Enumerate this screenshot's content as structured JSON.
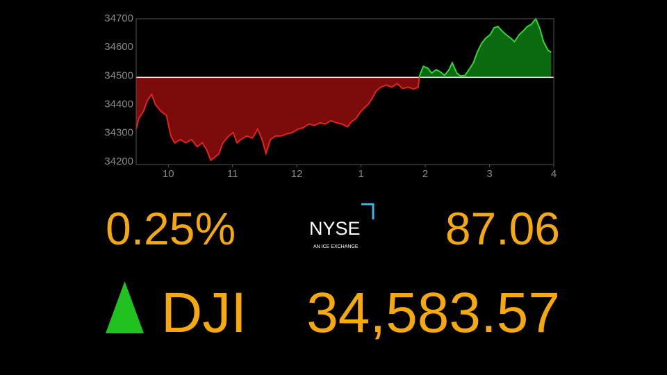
{
  "chart_data": {
    "type": "area",
    "x": [
      9.5,
      9.54,
      9.61,
      9.67,
      9.74,
      9.8,
      9.89,
      9.97,
      10.04,
      10.1,
      10.19,
      10.27,
      10.36,
      10.45,
      10.53,
      10.6,
      10.66,
      10.73,
      10.79,
      10.85,
      10.94,
      11.01,
      11.07,
      11.13,
      11.22,
      11.31,
      11.39,
      11.46,
      11.52,
      11.59,
      11.67,
      11.76,
      11.84,
      11.93,
      12.02,
      12.1,
      12.19,
      12.27,
      12.36,
      12.45,
      12.53,
      12.62,
      12.7,
      12.79,
      12.85,
      12.92,
      12.98,
      13.05,
      13.11,
      13.18,
      13.24,
      13.31,
      13.39,
      13.48,
      13.56,
      13.65,
      13.74,
      13.82,
      13.89,
      13.91,
      13.97,
      14.04,
      14.1,
      14.17,
      14.23,
      14.3,
      14.37,
      14.42,
      14.49,
      14.55,
      14.62,
      14.68,
      14.75,
      14.81,
      14.88,
      14.94,
      15.01,
      15.07,
      15.13,
      15.2,
      15.26,
      15.33,
      15.39,
      15.46,
      15.52,
      15.59,
      15.65,
      15.72,
      15.78,
      15.84,
      15.91,
      15.96
    ],
    "values": [
      34314,
      34351,
      34375,
      34412,
      34436,
      34400,
      34375,
      34363,
      34290,
      34266,
      34278,
      34266,
      34278,
      34253,
      34266,
      34241,
      34205,
      34217,
      34229,
      34266,
      34290,
      34302,
      34266,
      34278,
      34290,
      34283,
      34314,
      34278,
      34229,
      34278,
      34290,
      34290,
      34297,
      34302,
      34314,
      34319,
      34332,
      34327,
      34336,
      34332,
      34344,
      34336,
      34332,
      34322,
      34339,
      34351,
      34371,
      34388,
      34400,
      34424,
      34449,
      34461,
      34468,
      34461,
      34473,
      34456,
      34461,
      34454,
      34461,
      34500,
      34534,
      34527,
      34510,
      34522,
      34515,
      34502,
      34522,
      34546,
      34510,
      34500,
      34502,
      34522,
      34546,
      34583,
      34615,
      34632,
      34644,
      34668,
      34673,
      34656,
      34644,
      34632,
      34620,
      34644,
      34656,
      34673,
      34680,
      34700,
      34668,
      34620,
      34590,
      34583
    ],
    "baseline": 34495,
    "up_color": "#33d633",
    "down_color": "#e3231d",
    "up_fill": "#0b6a0f",
    "down_fill": "#7c0b0b",
    "xlim": [
      9.5,
      16
    ],
    "ylim": [
      34190,
      34700
    ],
    "xticks": [
      10,
      11,
      12,
      {
        "value": 13,
        "label": "1"
      },
      {
        "value": 14,
        "label": "2"
      },
      {
        "value": 15,
        "label": "3"
      },
      {
        "value": 16,
        "label": "4"
      }
    ],
    "yticks": [
      34200,
      34300,
      34400,
      34500,
      34600,
      34700
    ]
  },
  "ticker": {
    "percent_change": "0.25%",
    "point_change": "87.06",
    "direction": "up",
    "direction_color": "#1fc21f",
    "symbol": "DJI",
    "price": "34,583.57",
    "exchange": {
      "name": "NYSE",
      "tagline": "AN ICE EXCHANGE"
    }
  }
}
